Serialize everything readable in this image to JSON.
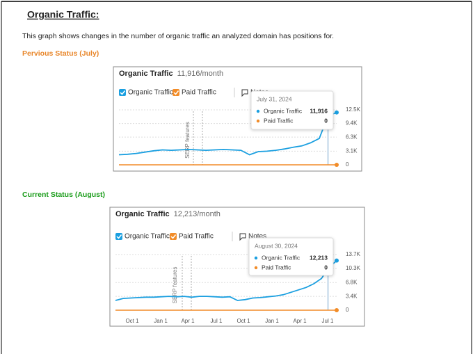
{
  "header": {
    "title": "Organic Traffic:"
  },
  "intro": "This graph shows changes in the number of organic traffic an analyzed domain has positions for.",
  "sections": [
    {
      "label": "Pervious Status (July)",
      "widget": {
        "title": "Organic Traffic",
        "summary": "11,916/month",
        "notes_label": "Notes",
        "annotation": "SERP features",
        "tooltip": {
          "date": "July 31, 2024",
          "values": [
            "11,916",
            "0"
          ]
        },
        "ylim": [
          0,
          12500
        ],
        "yticks": [
          0,
          {
            "value": 3100,
            "label": "3.1K"
          },
          {
            "value": 6300,
            "label": "6.3K"
          },
          {
            "value": 9400,
            "label": "9.4K"
          },
          {
            "value": 12500,
            "label": "12.5K"
          }
        ],
        "x_labels": [],
        "series": [
          {
            "name": "Organic Traffic",
            "color": "#1a9fe0",
            "values": [
              2300,
              2400,
              2600,
              2900,
              3200,
              3400,
              3300,
              3400,
              3500,
              3400,
              3300,
              3400,
              3500,
              3400,
              3300,
              2300,
              3000,
              3100,
              3300,
              3600,
              4000,
              4300,
              5000,
              6000,
              11100,
              11916
            ]
          },
          {
            "name": "Paid Traffic",
            "color": "#f28c28",
            "values": [
              0,
              0,
              0,
              0,
              0,
              0,
              0,
              0,
              0,
              0,
              0,
              0,
              0,
              0,
              0,
              0,
              0,
              0,
              0,
              0,
              0,
              0,
              0,
              0,
              0,
              0
            ]
          }
        ]
      }
    },
    {
      "label": "Current Status (August)",
      "widget": {
        "title": "Organic Traffic",
        "summary": "12,213/month",
        "notes_label": "Notes",
        "annotation": "SERP features",
        "tooltip": {
          "date": "August 30, 2024",
          "values": [
            "12,213",
            "0"
          ]
        },
        "ylim": [
          0,
          13700
        ],
        "yticks": [
          0,
          {
            "value": 3400,
            "label": "3.4K"
          },
          {
            "value": 6800,
            "label": "6.8K"
          },
          {
            "value": 10300,
            "label": "10.3K"
          },
          {
            "value": 13700,
            "label": "13.7K"
          }
        ],
        "x_labels": [
          "Oct 1",
          "Jan 1",
          "Apr 1",
          "Jul 1",
          "Oct 1",
          "Jan 1",
          "Apr 1",
          "Jul 1"
        ],
        "series": [
          {
            "name": "Organic Traffic",
            "color": "#1a9fe0",
            "values": [
              2400,
              2900,
              3000,
              3100,
              3200,
              3200,
              3300,
              3400,
              3300,
              3400,
              3200,
              3400,
              3400,
              3300,
              3200,
              3300,
              2400,
              2600,
              3000,
              3100,
              3300,
              3500,
              3800,
              4400,
              5000,
              5600,
              6500,
              7800,
              10500,
              12213
            ]
          },
          {
            "name": "Paid Traffic",
            "color": "#f28c28",
            "values": [
              0,
              0,
              0,
              0,
              0,
              0,
              0,
              0,
              0,
              0,
              0,
              0,
              0,
              0,
              0,
              0,
              0,
              0,
              0,
              0,
              0,
              0,
              0,
              0,
              0,
              0,
              0,
              0,
              0,
              0
            ]
          }
        ]
      }
    }
  ]
}
